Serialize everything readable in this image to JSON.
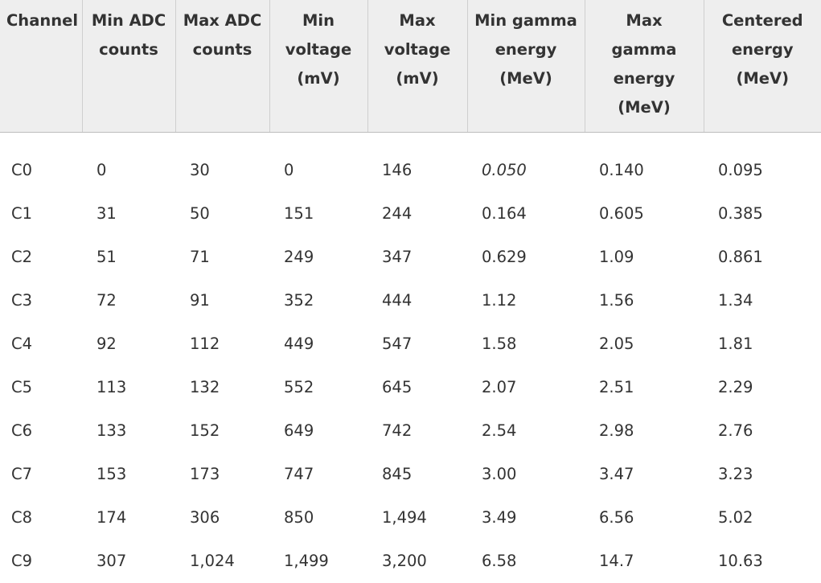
{
  "headers": [
    [
      "Channel"
    ],
    [
      "Min ADC",
      "counts"
    ],
    [
      "Max ADC",
      "counts"
    ],
    [
      "Min",
      "voltage",
      "(mV)"
    ],
    [
      "Max",
      "voltage",
      "(mV)"
    ],
    [
      "Min gamma",
      "energy",
      "(MeV)"
    ],
    [
      "Max",
      "gamma",
      "energy",
      "(MeV)"
    ],
    [
      "Centered",
      "energy",
      "(MeV)"
    ]
  ],
  "rows": [
    [
      "C0",
      "0",
      "30",
      "0",
      "146",
      "0.050",
      "0.140",
      "0.095"
    ],
    [
      "C1",
      "31",
      "50",
      "151",
      "244",
      "0.164",
      "0.605",
      "0.385"
    ],
    [
      "C2",
      "51",
      "71",
      "249",
      "347",
      "0.629",
      "1.09",
      "0.861"
    ],
    [
      "C3",
      "72",
      "91",
      "352",
      "444",
      "1.12",
      "1.56",
      "1.34"
    ],
    [
      "C4",
      "92",
      "112",
      "449",
      "547",
      "1.58",
      "2.05",
      "1.81"
    ],
    [
      "C5",
      "113",
      "132",
      "552",
      "645",
      "2.07",
      "2.51",
      "2.29"
    ],
    [
      "C6",
      "133",
      "152",
      "649",
      "742",
      "2.54",
      "2.98",
      "2.76"
    ],
    [
      "C7",
      "153",
      "173",
      "747",
      "845",
      "3.00",
      "3.47",
      "3.23"
    ],
    [
      "C8",
      "174",
      "306",
      "850",
      "1,494",
      "3.49",
      "6.56",
      "5.02"
    ],
    [
      "C9",
      "307",
      "1,024",
      "1,499",
      "3,200",
      "6.58",
      "14.7",
      "10.63"
    ]
  ]
}
